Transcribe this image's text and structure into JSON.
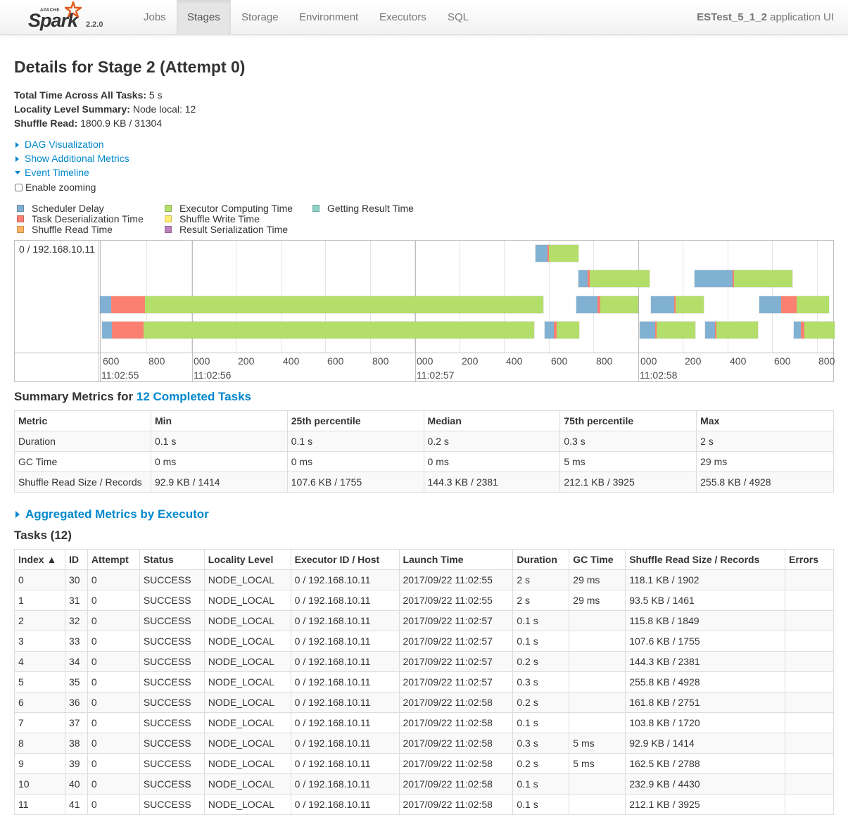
{
  "brand": {
    "apache": "APACHE",
    "name": "Spark",
    "version": "2.2.0"
  },
  "nav": {
    "tabs": [
      {
        "label": "Jobs"
      },
      {
        "label": "Stages"
      },
      {
        "label": "Storage"
      },
      {
        "label": "Environment"
      },
      {
        "label": "Executors"
      },
      {
        "label": "SQL"
      }
    ],
    "active_tab": "Stages",
    "app_name": "ESTest_5_1_2",
    "app_suffix": "application UI"
  },
  "page": {
    "title": "Details for Stage 2 (Attempt 0)",
    "summary": [
      {
        "label": "Total Time Across All Tasks:",
        "value": "5 s"
      },
      {
        "label": "Locality Level Summary:",
        "value": "Node local: 12"
      },
      {
        "label": "Shuffle Read:",
        "value": "1800.9 KB / 31304"
      }
    ],
    "toggles": {
      "dag": "DAG Visualization",
      "metrics": "Show Additional Metrics",
      "timeline": "Event Timeline"
    },
    "enable_zooming": "Enable zooming"
  },
  "legend": [
    {
      "label": "Scheduler Delay",
      "color": "#80b1d3"
    },
    {
      "label": "Task Deserialization Time",
      "color": "#fb8072"
    },
    {
      "label": "Shuffle Read Time",
      "color": "#fdb462"
    },
    {
      "label": "Executor Computing Time",
      "color": "#b3de69"
    },
    {
      "label": "Shuffle Write Time",
      "color": "#ffed6f"
    },
    {
      "label": "Result Serialization Time",
      "color": "#bc80bd"
    },
    {
      "label": "Getting Result Time",
      "color": "#8dd3c7"
    }
  ],
  "timeline": {
    "group_label": "0 / 192.168.10.11",
    "tick_labels": [
      "600",
      "800",
      "000",
      "200",
      "400",
      "600",
      "800",
      "000",
      "200",
      "400",
      "600",
      "800",
      "000",
      "200",
      "400",
      "600",
      "800"
    ],
    "major_labels": [
      "11:02:55",
      "11:02:56",
      "11:02:57",
      "11:02:58"
    ]
  },
  "summary_metrics": {
    "heading_prefix": "Summary Metrics for",
    "heading_link": "12 Completed Tasks",
    "columns": [
      "Metric",
      "Min",
      "25th percentile",
      "Median",
      "75th percentile",
      "Max"
    ],
    "rows": [
      [
        "Duration",
        "0.1 s",
        "0.1 s",
        "0.2 s",
        "0.3 s",
        "2 s"
      ],
      [
        "GC Time",
        "0 ms",
        "0 ms",
        "0 ms",
        "5 ms",
        "29 ms"
      ],
      [
        "Shuffle Read Size / Records",
        "92.9 KB / 1414",
        "107.6 KB / 1755",
        "144.3 KB / 2381",
        "212.1 KB / 3925",
        "255.8 KB / 4928"
      ]
    ]
  },
  "aggregated": {
    "label": "Aggregated Metrics by Executor"
  },
  "tasks": {
    "heading": "Tasks (12)",
    "columns": [
      "Index ▲",
      "ID",
      "Attempt",
      "Status",
      "Locality Level",
      "Executor ID / Host",
      "Launch Time",
      "Duration",
      "GC Time",
      "Shuffle Read Size / Records",
      "Errors"
    ],
    "rows": [
      [
        "0",
        "30",
        "0",
        "SUCCESS",
        "NODE_LOCAL",
        "0 / 192.168.10.11",
        "2017/09/22 11:02:55",
        "2 s",
        "29 ms",
        "118.1 KB / 1902",
        ""
      ],
      [
        "1",
        "31",
        "0",
        "SUCCESS",
        "NODE_LOCAL",
        "0 / 192.168.10.11",
        "2017/09/22 11:02:55",
        "2 s",
        "29 ms",
        "93.5 KB / 1461",
        ""
      ],
      [
        "2",
        "32",
        "0",
        "SUCCESS",
        "NODE_LOCAL",
        "0 / 192.168.10.11",
        "2017/09/22 11:02:57",
        "0.1 s",
        "",
        "115.8 KB / 1849",
        ""
      ],
      [
        "3",
        "33",
        "0",
        "SUCCESS",
        "NODE_LOCAL",
        "0 / 192.168.10.11",
        "2017/09/22 11:02:57",
        "0.1 s",
        "",
        "107.6 KB / 1755",
        ""
      ],
      [
        "4",
        "34",
        "0",
        "SUCCESS",
        "NODE_LOCAL",
        "0 / 192.168.10.11",
        "2017/09/22 11:02:57",
        "0.2 s",
        "",
        "144.3 KB / 2381",
        ""
      ],
      [
        "5",
        "35",
        "0",
        "SUCCESS",
        "NODE_LOCAL",
        "0 / 192.168.10.11",
        "2017/09/22 11:02:57",
        "0.3 s",
        "",
        "255.8 KB / 4928",
        ""
      ],
      [
        "6",
        "36",
        "0",
        "SUCCESS",
        "NODE_LOCAL",
        "0 / 192.168.10.11",
        "2017/09/22 11:02:58",
        "0.2 s",
        "",
        "161.8 KB / 2751",
        ""
      ],
      [
        "7",
        "37",
        "0",
        "SUCCESS",
        "NODE_LOCAL",
        "0 / 192.168.10.11",
        "2017/09/22 11:02:58",
        "0.1 s",
        "",
        "103.8 KB / 1720",
        ""
      ],
      [
        "8",
        "38",
        "0",
        "SUCCESS",
        "NODE_LOCAL",
        "0 / 192.168.10.11",
        "2017/09/22 11:02:58",
        "0.3 s",
        "5 ms",
        "92.9 KB / 1414",
        ""
      ],
      [
        "9",
        "39",
        "0",
        "SUCCESS",
        "NODE_LOCAL",
        "0 / 192.168.10.11",
        "2017/09/22 11:02:58",
        "0.2 s",
        "5 ms",
        "162.5 KB / 2788",
        ""
      ],
      [
        "10",
        "40",
        "0",
        "SUCCESS",
        "NODE_LOCAL",
        "0 / 192.168.10.11",
        "2017/09/22 11:02:58",
        "0.1 s",
        "",
        "232.9 KB / 4430",
        ""
      ],
      [
        "11",
        "41",
        "0",
        "SUCCESS",
        "NODE_LOCAL",
        "0 / 192.168.10.11",
        "2017/09/22 11:02:58",
        "0.1 s",
        "",
        "212.1 KB / 3925",
        ""
      ]
    ]
  }
}
